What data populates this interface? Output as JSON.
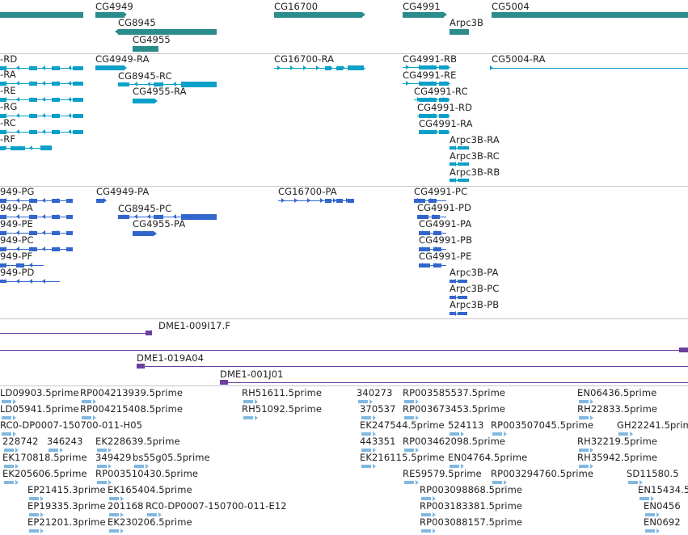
{
  "colors": {
    "gene": "#2a8c8c",
    "mrna": "#0aa0c8",
    "cds": "#3366cc",
    "clone": "#6a3fa0",
    "est": "#80b8e0",
    "divider": "#c8c8c8"
  },
  "genes": [
    "CG4949",
    "CG8945",
    "CG4955",
    "CG16700",
    "CG4991",
    "Arpc3B",
    "CG5004"
  ],
  "transcripts": [
    "-RD",
    "-RA",
    "-RE",
    "-RG",
    "-RC",
    "-RF",
    "CG4949-RA",
    "CG8945-RC",
    "CG4955-RA",
    "CG16700-RA",
    "CG4991-RB",
    "CG4991-RE",
    "CG4991-RC",
    "CG4991-RD",
    "CG4991-RA",
    "Arpc3B-RA",
    "Arpc3B-RC",
    "Arpc3B-RB",
    "CG5004-RA"
  ],
  "proteins": [
    "949-PG",
    "949-PA",
    "949-PE",
    "949-PC",
    "949-PF",
    "949-PD",
    "CG4949-PA",
    "CG8945-PC",
    "CG4955-PA",
    "CG16700-PA",
    "CG4991-PC",
    "CG4991-PD",
    "CG4991-PA",
    "CG4991-PB",
    "CG4991-PE",
    "Arpc3B-PA",
    "Arpc3B-PC",
    "Arpc3B-PB"
  ],
  "clones": [
    "DME1-009I17.F",
    "DME1-019A04",
    "DME1-001J01"
  ],
  "ests": [
    "LD09903.5prime",
    "RP004213939.5prime",
    "RH51611.5prime",
    "340273",
    "RP003585537.5prime",
    "EN06436.5prime",
    "LD05941.5prime",
    "RP004215408.5prime",
    "RH51092.5prime",
    "370537",
    "RP003673453.5prime",
    "RH22833.5prime",
    "RC0-DP0007-150700-011-H05",
    "EK247544.5prime",
    "524113",
    "RP003507045.5prime",
    "GH22241.5prime",
    "228742",
    "346243",
    "EK228639.5prime",
    "443351",
    "RP003462098.5prime",
    "RH32219.5prime",
    "EK170818.5prime",
    "349429",
    "bs55g05.5prime",
    "EK216115.5prime",
    "EN04764.5prime",
    "RH35942.5prime",
    "EK205606.5prime",
    "RP003510430.5prime",
    "RE59579.5prime",
    "RP003294760.5prime",
    "SD11580.5",
    "EP21415.3prime",
    "EK165404.5prime",
    "RP003098868.5prime",
    "EN15434.5",
    "EP19335.3prime",
    "201168",
    "RC0-DP0007-150700-011-E12",
    "RP003183381.5prime",
    "EN0456",
    "EP21201.3prime",
    "EK230206.5prime",
    "RP003088157.5prime",
    "EN0692"
  ]
}
